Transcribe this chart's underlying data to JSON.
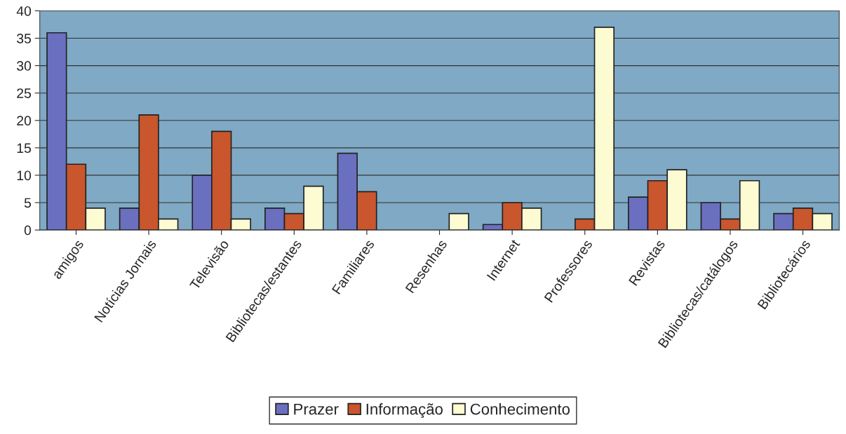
{
  "chart_data": {
    "type": "bar",
    "categories": [
      "amigos",
      "Notícias Jornais",
      "Televisão",
      "Bibliotecas/estantes",
      "Familiares",
      "Resenhas",
      "Internet",
      "Professores",
      "Revistas",
      "Bibliotecas/catálogos",
      "Bibliotecários"
    ],
    "series": [
      {
        "name": "Prazer",
        "color": "#6b6fc0",
        "values": [
          36,
          4,
          10,
          4,
          14,
          null,
          1,
          null,
          6,
          5,
          3
        ]
      },
      {
        "name": "Informação",
        "color": "#c9562c",
        "values": [
          12,
          21,
          18,
          3,
          7,
          null,
          5,
          2,
          9,
          2,
          4
        ]
      },
      {
        "name": "Conhecimento",
        "color": "#fdfbd2",
        "values": [
          4,
          2,
          2,
          8,
          null,
          3,
          4,
          37,
          11,
          9,
          3
        ]
      }
    ],
    "ylim": [
      0,
      40
    ],
    "yticks": [
      0,
      5,
      10,
      15,
      20,
      25,
      30,
      35,
      40
    ],
    "grid": "y",
    "legend": "bottom"
  }
}
